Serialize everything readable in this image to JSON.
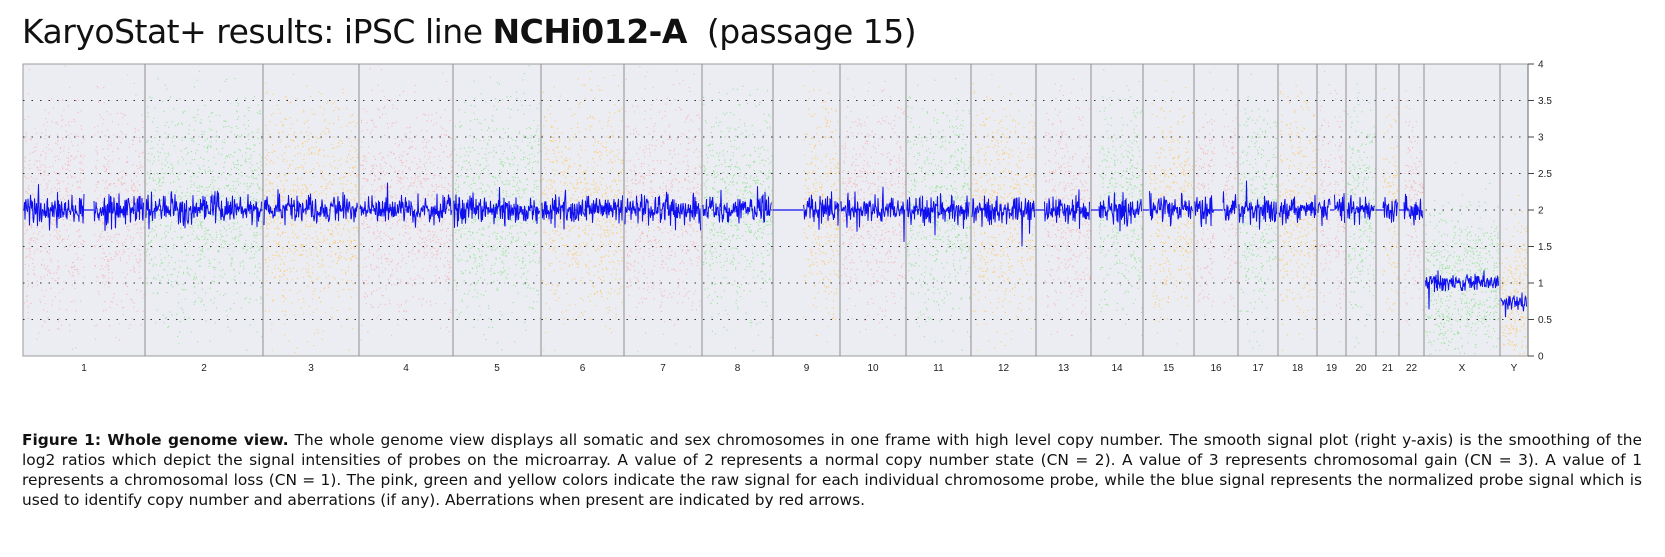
{
  "title": {
    "prefix": "KaryoStat+ results: iPSC line ",
    "line_name": "NCHi012-A",
    "suffix": "(passage 15)"
  },
  "chart_data": {
    "type": "scatter",
    "title": "",
    "xlabel": "",
    "ylabel": "",
    "ylim": [
      0,
      4
    ],
    "y_ticks": [
      "0",
      "0.5",
      "1",
      "1.5",
      "2",
      "2.5",
      "3",
      "3.5",
      "4"
    ],
    "y_axis_side": "right",
    "grid": true,
    "chromosomes": [
      {
        "label": "1",
        "raw_color": "pink",
        "smooth_cn": 2,
        "gap": [
          0.5,
          0.58
        ]
      },
      {
        "label": "2",
        "raw_color": "green",
        "smooth_cn": 2
      },
      {
        "label": "3",
        "raw_color": "yellow",
        "smooth_cn": 2
      },
      {
        "label": "4",
        "raw_color": "pink",
        "smooth_cn": 2
      },
      {
        "label": "5",
        "raw_color": "green",
        "smooth_cn": 2
      },
      {
        "label": "6",
        "raw_color": "yellow",
        "smooth_cn": 2
      },
      {
        "label": "7",
        "raw_color": "pink",
        "smooth_cn": 2
      },
      {
        "label": "8",
        "raw_color": "green",
        "smooth_cn": 2
      },
      {
        "label": "9",
        "raw_color": "yellow",
        "smooth_cn": 2,
        "gap": [
          0.0,
          0.45
        ]
      },
      {
        "label": "10",
        "raw_color": "pink",
        "smooth_cn": 2
      },
      {
        "label": "11",
        "raw_color": "green",
        "smooth_cn": 2
      },
      {
        "label": "12",
        "raw_color": "yellow",
        "smooth_cn": 2
      },
      {
        "label": "13",
        "raw_color": "pink",
        "smooth_cn": 2,
        "gap": [
          0.0,
          0.15
        ]
      },
      {
        "label": "14",
        "raw_color": "green",
        "smooth_cn": 2,
        "gap": [
          0.0,
          0.15
        ]
      },
      {
        "label": "15",
        "raw_color": "yellow",
        "smooth_cn": 2,
        "gap": [
          0.0,
          0.12
        ]
      },
      {
        "label": "16",
        "raw_color": "pink",
        "smooth_cn": 2,
        "gap": [
          0.45,
          0.65
        ]
      },
      {
        "label": "17",
        "raw_color": "green",
        "smooth_cn": 2
      },
      {
        "label": "18",
        "raw_color": "yellow",
        "smooth_cn": 2
      },
      {
        "label": "19",
        "raw_color": "pink",
        "smooth_cn": 2,
        "gap": [
          0.45,
          0.6
        ]
      },
      {
        "label": "20",
        "raw_color": "green",
        "smooth_cn": 2
      },
      {
        "label": "21",
        "raw_color": "yellow",
        "smooth_cn": 2,
        "gap": [
          0.0,
          0.3
        ]
      },
      {
        "label": "22",
        "raw_color": "pink",
        "smooth_cn": 2,
        "gap": [
          0.0,
          0.2
        ]
      },
      {
        "label": "X",
        "raw_color": "green",
        "smooth_cn": 1
      },
      {
        "label": "Y",
        "raw_color": "yellow",
        "smooth_cn": 0.75
      }
    ],
    "series": [
      {
        "role": "raw probe signal",
        "colors": {
          "pink": "#f7a8a8",
          "green": "#7fe07f",
          "yellow": "#ffc04d"
        }
      },
      {
        "role": "smooth signal",
        "color": "#1010ee"
      }
    ]
  },
  "caption": {
    "label": "Figure 1: Whole genome view.",
    "text": " The whole genome view displays all somatic and sex chromosomes in one frame with high level copy number. The smooth signal plot (right y-axis) is the smoothing of the log2 ratios which depict the signal intensities of probes on the microarray. A value of 2 represents a normal copy number state (CN = 2). A value of 3 represents chromosomal gain (CN = 3). A value of 1 represents a chromosomal loss (CN = 1). The pink, green and yellow colors indicate the raw signal for each individual chromosome probe, while the blue signal represents the normalized probe signal which is used to identify copy number and aberrations (if any). Aberrations when present are indicated by red arrows."
  }
}
